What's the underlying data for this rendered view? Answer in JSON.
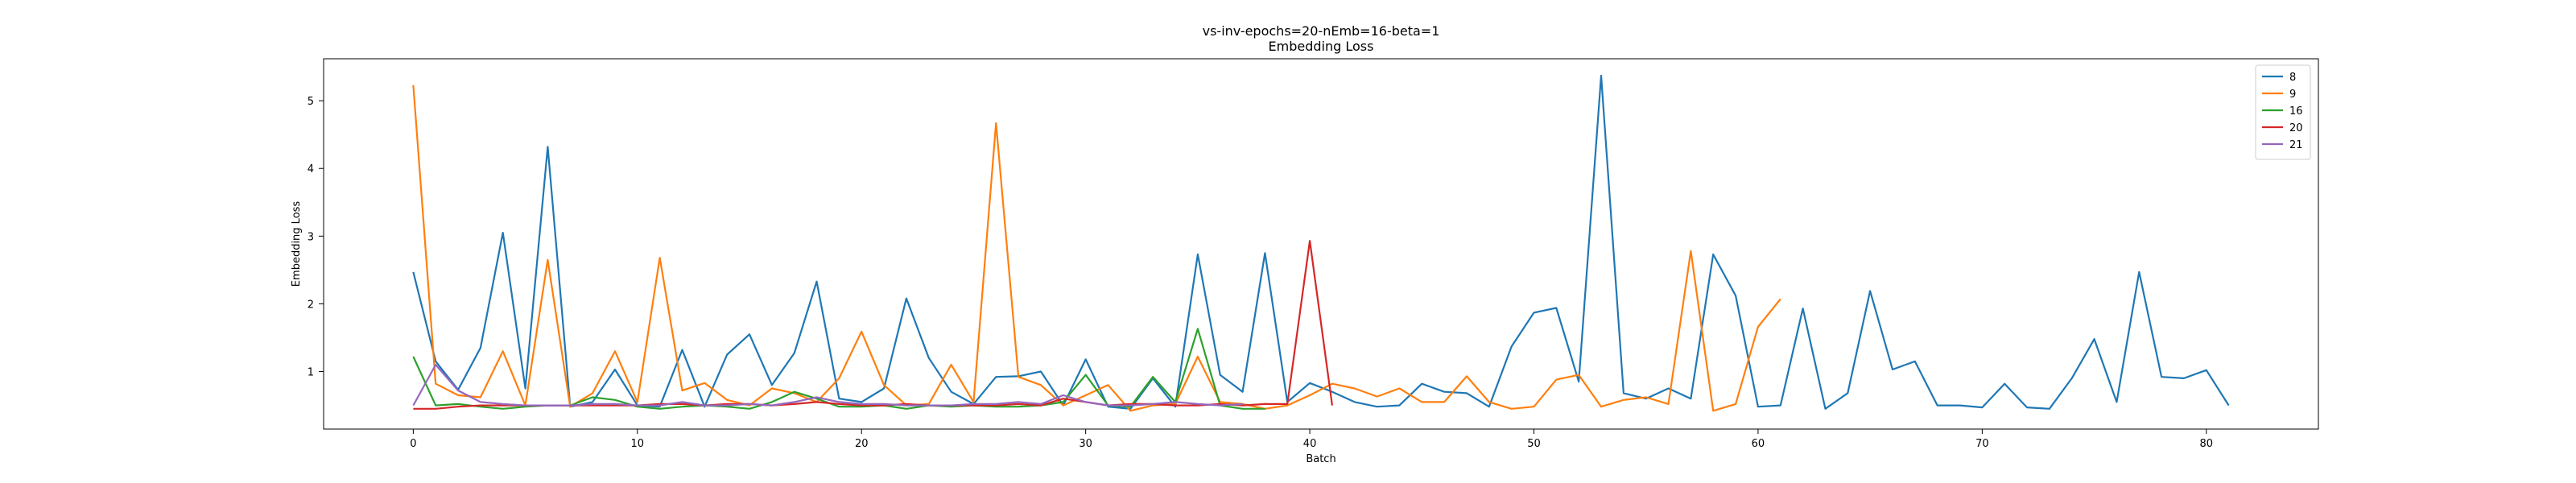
{
  "chart_data": {
    "type": "line",
    "title": "vs-inv-epochs=20-nEmb=16-beta=1",
    "subtitle": "Embedding Loss",
    "xlabel": "Batch",
    "ylabel": "Embedding Loss",
    "xlim": [
      -4,
      85
    ],
    "ylim": [
      0.15,
      5.62
    ],
    "xticks": [
      0,
      10,
      20,
      30,
      40,
      50,
      60,
      70,
      80
    ],
    "yticks": [
      1,
      2,
      3,
      4,
      5
    ],
    "grid": false,
    "legend_position": "top-right",
    "series": [
      {
        "name": "8",
        "color": "#1f77b4",
        "values": [
          2.47,
          1.15,
          0.73,
          1.35,
          3.05,
          0.75,
          4.32,
          0.48,
          0.55,
          1.03,
          0.5,
          0.48,
          1.32,
          0.48,
          1.25,
          1.55,
          0.8,
          1.27,
          2.33,
          0.6,
          0.55,
          0.75,
          2.08,
          1.2,
          0.7,
          0.52,
          0.92,
          0.93,
          1.0,
          0.5,
          1.18,
          0.48,
          0.45,
          0.9,
          0.48,
          2.73,
          0.95,
          0.7,
          2.75,
          0.55,
          0.83,
          0.7,
          0.55,
          0.48,
          0.5,
          0.82,
          0.7,
          0.68,
          0.48,
          1.37,
          1.87,
          1.94,
          0.85,
          5.37,
          0.68,
          0.6,
          0.75,
          0.6,
          2.73,
          2.12,
          0.48,
          0.5,
          1.93,
          0.45,
          0.68,
          2.19,
          1.03,
          1.15,
          0.5,
          0.5,
          0.47,
          0.82,
          0.47,
          0.45,
          0.9,
          1.48,
          0.55,
          2.47,
          0.92,
          0.9,
          1.02,
          0.5
        ]
      },
      {
        "name": "9",
        "color": "#ff7f0e",
        "values": [
          5.23,
          0.82,
          0.65,
          0.62,
          1.3,
          0.5,
          2.65,
          0.48,
          0.68,
          1.3,
          0.55,
          2.68,
          0.72,
          0.83,
          0.58,
          0.5,
          0.75,
          0.68,
          0.55,
          0.9,
          1.59,
          0.8,
          0.5,
          0.52,
          1.1,
          0.55,
          4.67,
          0.92,
          0.8,
          0.5,
          0.65,
          0.8,
          0.42,
          0.5,
          0.52,
          1.22,
          0.55,
          0.52,
          0.45,
          0.5,
          0.65,
          0.82,
          0.75,
          0.63,
          0.75,
          0.55,
          0.55,
          0.93,
          0.55,
          0.45,
          0.48,
          0.88,
          0.95,
          0.48,
          0.58,
          0.62,
          0.52,
          2.78,
          0.42,
          0.52,
          1.66,
          2.07
        ]
      },
      {
        "name": "16",
        "color": "#2ca02c",
        "values": [
          1.22,
          0.5,
          0.52,
          0.48,
          0.45,
          0.48,
          0.5,
          0.5,
          0.62,
          0.58,
          0.48,
          0.45,
          0.48,
          0.5,
          0.48,
          0.45,
          0.55,
          0.7,
          0.6,
          0.48,
          0.48,
          0.5,
          0.45,
          0.5,
          0.48,
          0.5,
          0.48,
          0.48,
          0.5,
          0.55,
          0.95,
          0.5,
          0.48,
          0.92,
          0.55,
          1.63,
          0.5,
          0.45,
          0.45
        ]
      },
      {
        "name": "20",
        "color": "#d62728",
        "values": [
          0.45,
          0.45,
          0.48,
          0.5,
          0.5,
          0.5,
          0.5,
          0.5,
          0.5,
          0.5,
          0.5,
          0.52,
          0.52,
          0.5,
          0.52,
          0.52,
          0.5,
          0.52,
          0.55,
          0.52,
          0.5,
          0.5,
          0.52,
          0.5,
          0.5,
          0.5,
          0.5,
          0.52,
          0.5,
          0.6,
          0.55,
          0.5,
          0.52,
          0.52,
          0.5,
          0.5,
          0.52,
          0.5,
          0.52,
          0.52,
          2.93,
          0.5
        ]
      },
      {
        "name": "21",
        "color": "#9467bd",
        "values": [
          0.5,
          1.1,
          0.72,
          0.55,
          0.52,
          0.5,
          0.5,
          0.5,
          0.52,
          0.52,
          0.5,
          0.5,
          0.55,
          0.5,
          0.5,
          0.52,
          0.5,
          0.55,
          0.62,
          0.55,
          0.52,
          0.52,
          0.5,
          0.5,
          0.5,
          0.52,
          0.52,
          0.55,
          0.52,
          0.65,
          0.55,
          0.5,
          0.5,
          0.52,
          0.55,
          0.52,
          0.5,
          0.52
        ]
      }
    ]
  }
}
